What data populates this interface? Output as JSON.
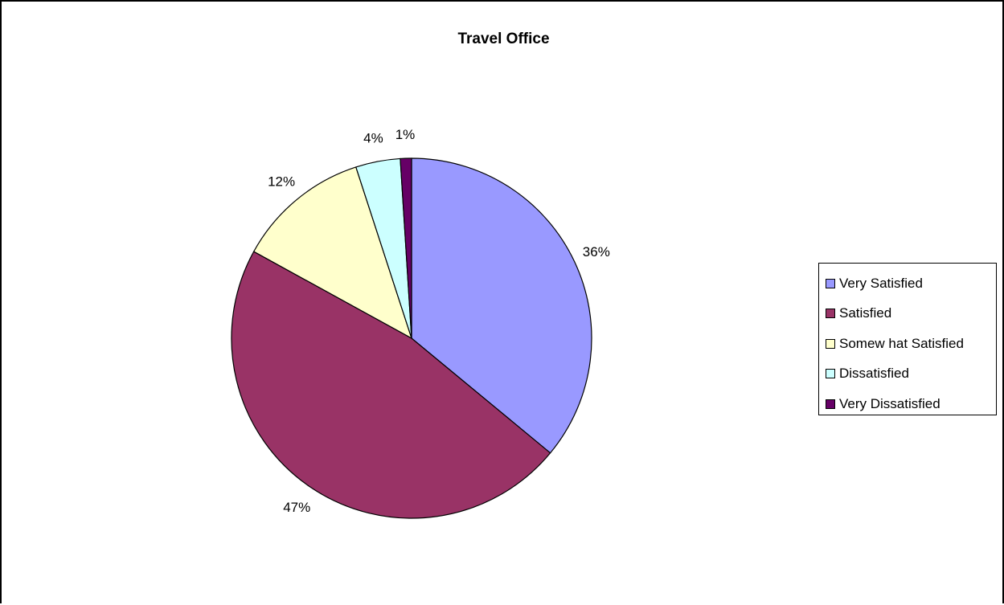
{
  "chart_data": {
    "type": "pie",
    "title": "Travel Office",
    "categories": [
      "Very Satisfied",
      "Satisfied",
      "Somew hat Satisfied",
      "Dissatisfied",
      "Very Dissatisfied"
    ],
    "values": [
      36,
      47,
      12,
      4,
      1
    ],
    "value_labels": [
      "36%",
      "47%",
      "12%",
      "4%",
      "1%"
    ],
    "colors": [
      "#9999ff",
      "#993366",
      "#ffffcc",
      "#ccffff",
      "#660066"
    ],
    "legend_placement": "right"
  }
}
